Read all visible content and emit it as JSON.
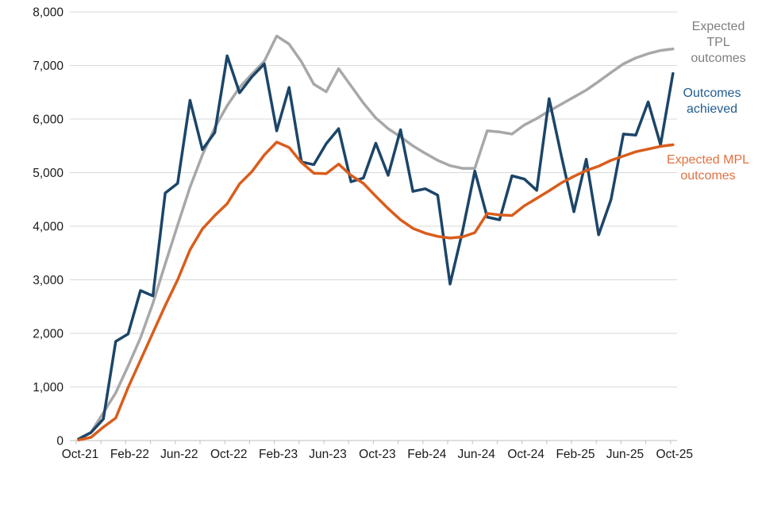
{
  "chart_data": {
    "type": "line",
    "title": "",
    "xlabel": "",
    "ylabel": "",
    "ylim": [
      0,
      8000
    ],
    "ytick_step": 1000,
    "grid": "horizontal",
    "legend_position": "right-of-lines",
    "x": [
      "Oct-21",
      "Nov-21",
      "Dec-21",
      "Jan-22",
      "Feb-22",
      "Mar-22",
      "Apr-22",
      "May-22",
      "Jun-22",
      "Jul-22",
      "Aug-22",
      "Sep-22",
      "Oct-22",
      "Nov-22",
      "Dec-22",
      "Jan-23",
      "Feb-23",
      "Mar-23",
      "Apr-23",
      "May-23",
      "Jun-23",
      "Jul-23",
      "Aug-23",
      "Sep-23",
      "Oct-23",
      "Nov-23",
      "Dec-23",
      "Jan-24",
      "Feb-24",
      "Mar-24",
      "Apr-24",
      "May-24",
      "Jun-24",
      "Jul-24",
      "Aug-24",
      "Sep-24",
      "Oct-24",
      "Nov-24",
      "Dec-24",
      "Jan-25",
      "Feb-25",
      "Mar-25",
      "Apr-25",
      "May-25",
      "Jun-25",
      "Jul-25",
      "Aug-25",
      "Sep-25",
      "Oct-25"
    ],
    "x_tick_labels": [
      "Oct-21",
      "Feb-22",
      "Jun-22",
      "Oct-22",
      "Feb-23",
      "Jun-23",
      "Oct-23",
      "Feb-24",
      "Jun-24",
      "Oct-24",
      "Feb-25",
      "Jun-25",
      "Oct-25"
    ],
    "y_tick_labels": [
      "0",
      "1,000",
      "2,000",
      "3,000",
      "4,000",
      "5,000",
      "6,000",
      "7,000",
      "8,000"
    ],
    "series": [
      {
        "name": "Expected TPL outcomes",
        "color": "#A8A8A8",
        "values": [
          30,
          150,
          520,
          890,
          1390,
          1915,
          2560,
          3300,
          4020,
          4730,
          5330,
          5840,
          6250,
          6590,
          6840,
          7080,
          7550,
          7400,
          7070,
          6650,
          6510,
          6940,
          6620,
          6300,
          6020,
          5820,
          5670,
          5500,
          5360,
          5230,
          5130,
          5080,
          5080,
          5780,
          5760,
          5720,
          5890,
          6010,
          6150,
          6280,
          6410,
          6540,
          6700,
          6870,
          7030,
          7140,
          7220,
          7280,
          7310
        ]
      },
      {
        "name": "Outcomes achieved",
        "color": "#1C4568",
        "values": [
          30,
          150,
          400,
          1850,
          1990,
          2800,
          2700,
          4620,
          4800,
          6350,
          5430,
          5750,
          7180,
          6490,
          6790,
          7030,
          5780,
          6590,
          5200,
          5150,
          5540,
          5820,
          4830,
          4900,
          5550,
          4950,
          5800,
          4650,
          4700,
          4580,
          2920,
          3900,
          5030,
          4170,
          4120,
          4940,
          4880,
          4670,
          6380,
          5300,
          4270,
          5250,
          3840,
          4500,
          5720,
          5700,
          6320,
          5520,
          6850
        ]
      },
      {
        "name": "Expected MPL outcomes",
        "color": "#D95D1C",
        "values": [
          10,
          60,
          250,
          420,
          990,
          1500,
          2010,
          2520,
          3000,
          3560,
          3950,
          4200,
          4420,
          4790,
          5020,
          5330,
          5570,
          5470,
          5190,
          4990,
          4980,
          5160,
          4950,
          4800,
          4560,
          4330,
          4120,
          3960,
          3870,
          3810,
          3780,
          3800,
          3880,
          4240,
          4210,
          4200,
          4380,
          4520,
          4660,
          4810,
          4930,
          5040,
          5120,
          5230,
          5310,
          5390,
          5440,
          5490,
          5520
        ]
      }
    ],
    "legend": {
      "tpl": {
        "label": "Expected TPL outcomes",
        "color": "#7F7F7F"
      },
      "achieved": {
        "label": "Outcomes achieved",
        "color": "#1F5C8F"
      },
      "mpl": {
        "label": "Expected MPL outcomes",
        "color": "#E27140"
      }
    },
    "style": {
      "gridline_color": "#D9D9D9",
      "axis_color": "#BFBFBF",
      "tick_label_color": "#1A1A1A"
    }
  }
}
